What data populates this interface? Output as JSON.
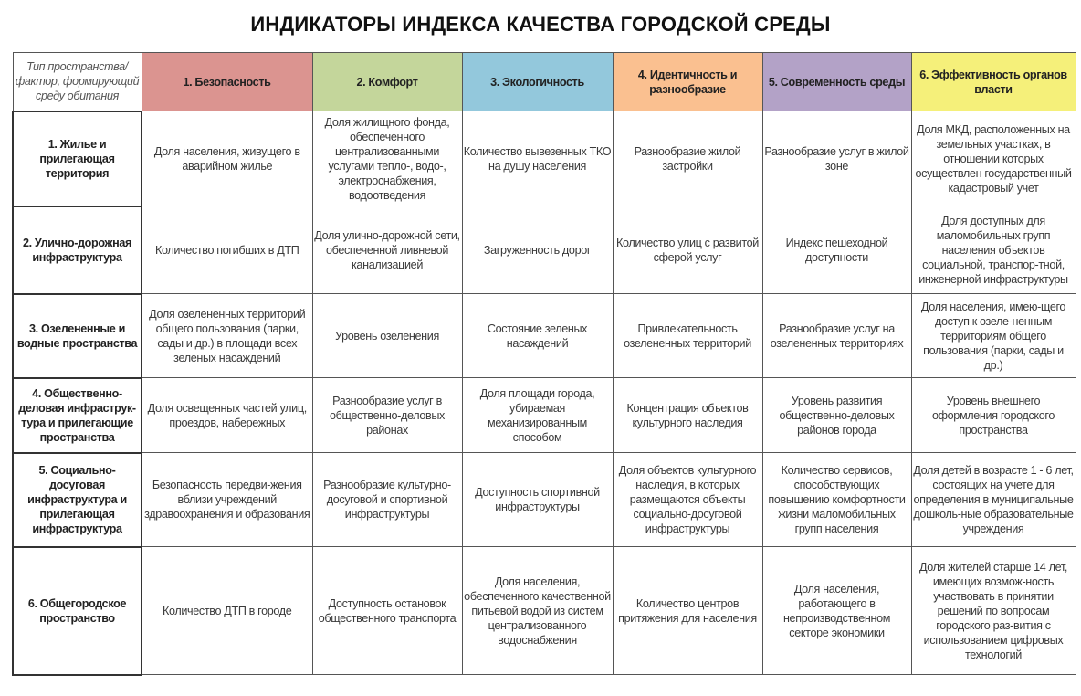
{
  "title": "ИНДИКАТОРЫ ИНДЕКСА КАЧЕСТВА ГОРОДСКОЙ СРЕДЫ",
  "corner_header": "Тип пространства/фактор, формирующий среду обитания",
  "columns": [
    {
      "label": "1. Безопасность",
      "color": "#db9490"
    },
    {
      "label": "2. Комфорт",
      "color": "#c4d69b"
    },
    {
      "label": "3. Экологичность",
      "color": "#93c8dc"
    },
    {
      "label": "4. Идентичность и разнообразие",
      "color": "#fac090"
    },
    {
      "label": "5. Современность среды",
      "color": "#b3a2c7"
    },
    {
      "label": "6. Эффективность органов власти",
      "color": "#f5f07a"
    }
  ],
  "rows": [
    {
      "label": "1. Жилье и прилегающая территория",
      "cells": [
        "Доля населения, живущего в аварийном жилье",
        "Доля жилищного фонда, обеспеченного централизованными услугами тепло-, водо-, электроснабжения, водоотведения",
        "Количество вывезенных ТКО на душу населения",
        "Разнообразие жилой застройки",
        "Разнообразие услуг в жилой зоне",
        "Доля МКД, расположенных на земельных участках, в отношении которых осуществлен государственный кадастровый учет"
      ]
    },
    {
      "label": "2. Улично-дорожная инфраструктура",
      "cells": [
        "Количество  погибших в ДТП",
        "Доля улично-дорожной сети, обеспеченной ливневой канализацией",
        "Загруженность дорог",
        "Количество улиц с развитой сферой услуг",
        "Индекс пешеходной доступности",
        "Доля доступных для маломобильных групп населения объектов социальной, транспор-тной, инженерной инфраструктуры"
      ]
    },
    {
      "label": "3. Озелененные и водные пространства",
      "cells": [
        "Доля озелененных территорий общего пользования (парки, сады и др.) в площади всех зеленых насаждений",
        "Уровень озеленения",
        "Состояние зеленых насаждений",
        "Привлекательность озелененных территорий",
        "Разнообразие услуг на озелененных территориях",
        "Доля населения, имею-щего доступ к озеле-ненным территориям общего пользования (парки, сады и др.)"
      ]
    },
    {
      "label": "4. Общественно-деловая инфраструк-тура и прилегающие пространства",
      "cells": [
        "Доля освещенных частей улиц, проездов, набережных",
        "Разнообразие услуг в общественно-деловых районах",
        "Доля площади города, убираемая механизированным способом",
        "Концентрация объектов культурного наследия",
        "Уровень развития общественно-деловых районов города",
        "Уровень внешнего оформления городского пространства"
      ]
    },
    {
      "label": "5. Социально-досуговая инфраструктура и прилегающая инфраструктура",
      "cells": [
        "Безопасность передви-жения вблизи учреждений здравоохранения и образования",
        "Разнообразие культурно-досуговой и спортивной инфраструктуры",
        "Доступность спортивной инфраструктуры",
        "Доля объектов культурного наследия, в которых размещаются объекты социально-досуговой инфраструктуры",
        "Количество сервисов, способствующих повышению комфортности жизни маломобильных групп населения",
        "Доля детей в возрасте 1 - 6 лет, состоящих на учете для определения в муниципальные дошколь-ные образовательные учреждения"
      ]
    },
    {
      "label": "6. Общегородское пространство",
      "cells": [
        "Количество ДТП в городе",
        "Доступность остановок общественного транспорта",
        "Доля населения, обеспеченного качественной питьевой водой из систем централизованного водоснабжения",
        "Количество центров притяжения для населения",
        "Доля населения, работающего в непроизводственном секторе экономики",
        "Доля жителей старше 14 лет, имеющих возмож-ность участвовать в принятии решений по вопросам городского раз-вития с использованием цифровых технологий"
      ]
    }
  ]
}
